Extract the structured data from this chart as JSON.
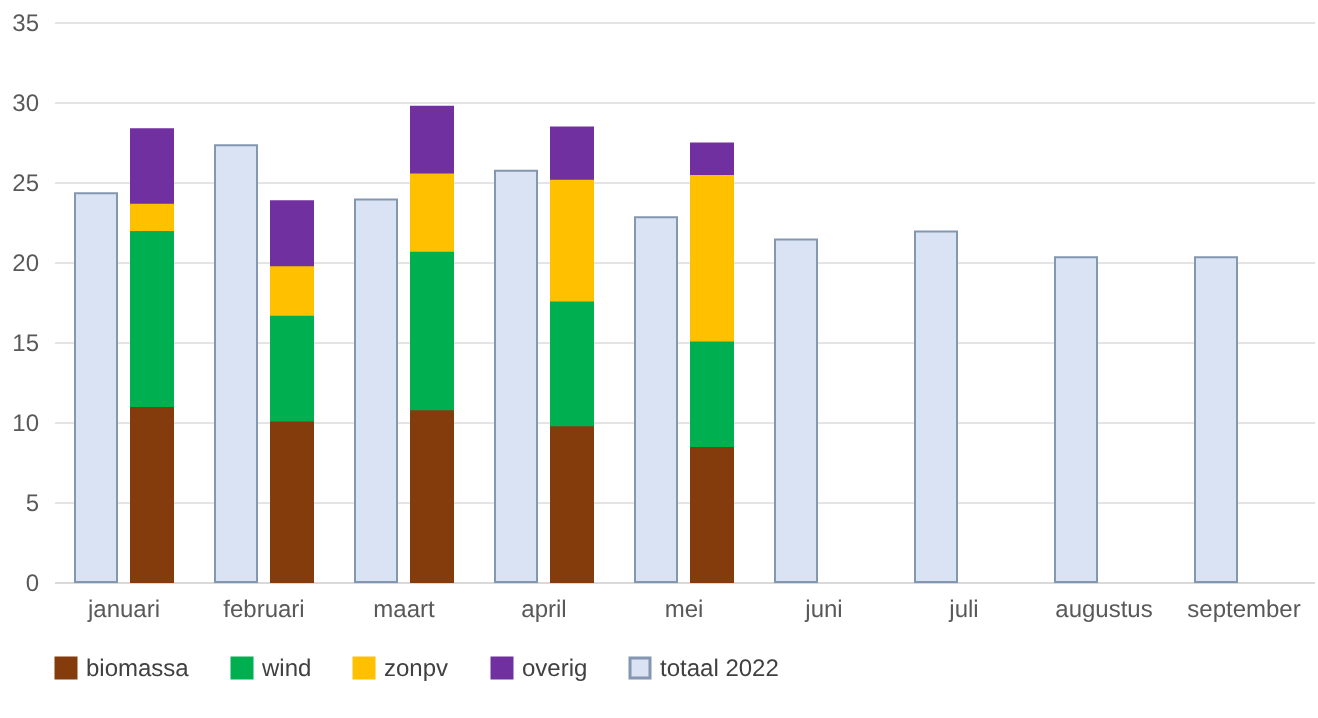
{
  "chart_data": {
    "type": "bar",
    "categories": [
      "januari",
      "februari",
      "maart",
      "april",
      "mei",
      "juni",
      "juli",
      "augustus",
      "september"
    ],
    "series": [
      {
        "name": "biomassa",
        "color": "#843c0c",
        "values": [
          11,
          10.1,
          10.8,
          9.8,
          8.5,
          null,
          null,
          null,
          null
        ],
        "base": [
          0,
          0,
          0,
          0,
          0,
          null,
          null,
          null,
          null
        ]
      },
      {
        "name": "wind",
        "color": "#00b050",
        "values": [
          11,
          6.6,
          9.9,
          7.8,
          6.6,
          null,
          null,
          null,
          null
        ],
        "base": [
          11,
          10.1,
          10.8,
          9.8,
          8.5,
          null,
          null,
          null,
          null
        ]
      },
      {
        "name": "zonpv",
        "color": "#ffc000",
        "values": [
          1.7,
          3.1,
          4.9,
          7.6,
          10.4,
          null,
          null,
          null,
          null
        ],
        "base": [
          22,
          16.7,
          20.7,
          17.6,
          15.1,
          null,
          null,
          null,
          null
        ]
      },
      {
        "name": "overig",
        "color": "#7030a0",
        "values": [
          4.6,
          4,
          4.1,
          3.2,
          1.9,
          null,
          null,
          null,
          null
        ],
        "base": [
          23.7,
          19.8,
          25.6,
          25.2,
          25.5,
          null,
          null,
          null,
          null
        ]
      },
      {
        "name": "totaal 2022",
        "color": "#dae3f3",
        "values": [
          24.3,
          27.3,
          23.9,
          25.7,
          22.8,
          21.4,
          21.9,
          20.3,
          20.3
        ],
        "base": [
          0,
          0,
          0,
          0,
          0,
          0,
          0,
          0,
          0
        ]
      }
    ],
    "ylim": [
      0,
      35
    ],
    "yticks": [
      0,
      5,
      10,
      15,
      20,
      25,
      30,
      35
    ],
    "grid": "y",
    "legend": "bottom"
  }
}
